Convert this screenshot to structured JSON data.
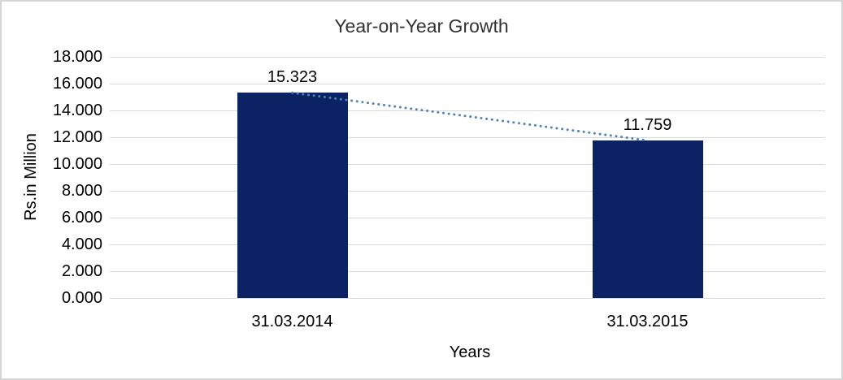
{
  "chart_data": {
    "type": "bar",
    "title": "Year-on-Year Growth",
    "xlabel": "Years",
    "ylabel": "Rs.in Million",
    "categories": [
      "31.03.2014",
      "31.03.2015"
    ],
    "values": [
      15.323,
      11.759
    ],
    "data_labels": [
      "15.323",
      "11.759"
    ],
    "y_tick_labels": [
      "18.000",
      "16.000",
      "14.000",
      "12.000",
      "10.000",
      "8.000",
      "6.000",
      "4.000",
      "2.000",
      "0.000"
    ],
    "y_tick_values": [
      18,
      16,
      14,
      12,
      10,
      8,
      6,
      4,
      2,
      0
    ],
    "ylim": [
      0,
      18
    ],
    "grid": true,
    "legend": false,
    "trendline": {
      "type": "linear",
      "style": "dotted",
      "points": [
        15.323,
        11.759
      ]
    },
    "colors": {
      "bar": "#0b2364",
      "trendline": "#4f81bd",
      "gridline": "#d9d9d9",
      "text": "#000000",
      "title_text": "#333333",
      "frame_border": "#d6d6d6",
      "background": "#ffffff"
    }
  }
}
